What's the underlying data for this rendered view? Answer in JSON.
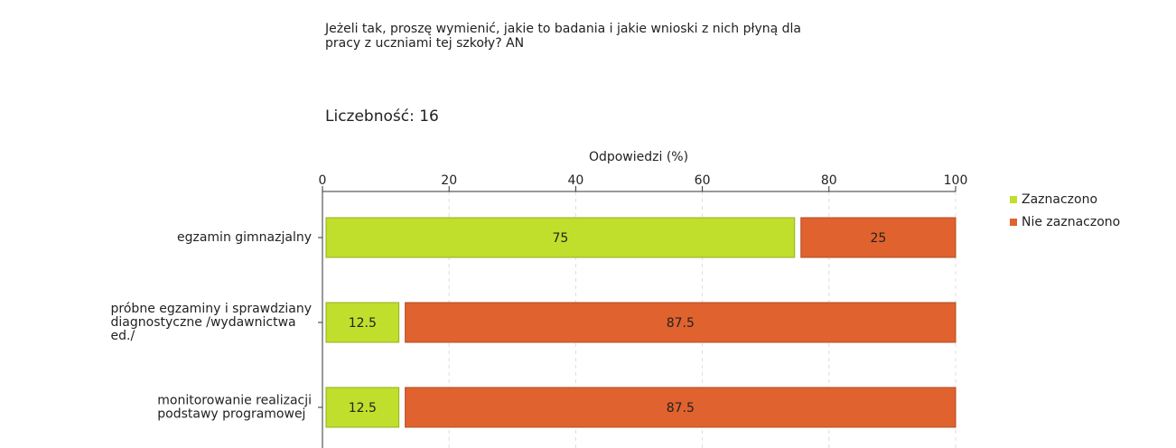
{
  "chart_data": {
    "type": "stacked_barh",
    "title_lines": [
      "Jeżeli tak, proszę wymienić, jakie to badania i jakie wnioski z nich płyną dla",
      "pracy z uczniami tej szkoły?  AN"
    ],
    "subtitle": "Liczebność: 16",
    "x_label": "Odpowiedzi (%)",
    "categories": [
      "egzamin gimnazjalny",
      "próbne egzaminy i sprawdziany diagnostyczne /wydawnictwa ed./",
      "monitorowanie realizacji podstawy programowej"
    ],
    "series": [
      {
        "name": "Zaznaczono",
        "color": "#c0df2c",
        "values": [
          75,
          12.5,
          12.5
        ]
      },
      {
        "name": "Nie zaznaczono",
        "color": "#e0622e",
        "values": [
          25,
          87.5,
          87.5
        ]
      }
    ],
    "xlim": [
      0,
      100
    ],
    "xticks": [
      0,
      20,
      40,
      60,
      80,
      100
    ],
    "grid": true,
    "legend": "right"
  }
}
